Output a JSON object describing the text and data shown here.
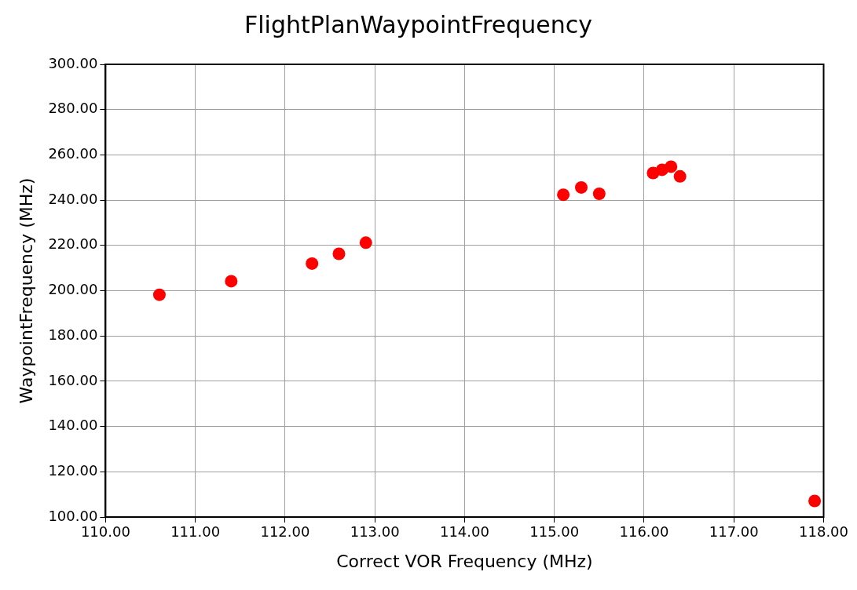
{
  "chart_data": {
    "type": "scatter",
    "title": "FlightPlanWaypointFrequency",
    "xlabel": "Correct VOR Frequency (MHz)",
    "ylabel": "WaypointFrequency (MHz)",
    "x": [
      110.6,
      111.4,
      112.3,
      112.6,
      112.9,
      115.1,
      115.3,
      115.5,
      116.1,
      116.2,
      116.3,
      116.4,
      117.9
    ],
    "series": [
      {
        "color": "#ff0000",
        "values": [
          198.2,
          204.2,
          212,
          216.3,
          221.2,
          242.4,
          245.6,
          242.8,
          252,
          253.4,
          254.8,
          250.5,
          107.1
        ]
      }
    ],
    "xlim": [
      110,
      118
    ],
    "ylim": [
      100,
      300
    ],
    "xticks": [
      {
        "value": 110,
        "label": "110.00"
      },
      {
        "value": 111,
        "label": "111.00"
      },
      {
        "value": 112,
        "label": "112.00"
      },
      {
        "value": 113,
        "label": "113.00"
      },
      {
        "value": 114,
        "label": "114.00"
      },
      {
        "value": 115,
        "label": "115.00"
      },
      {
        "value": 116,
        "label": "116.00"
      },
      {
        "value": 117,
        "label": "117.00"
      },
      {
        "value": 118,
        "label": "118.00"
      }
    ],
    "yticks": [
      {
        "value": 100,
        "label": "100.00"
      },
      {
        "value": 120,
        "label": "120.00"
      },
      {
        "value": 140,
        "label": "140.00"
      },
      {
        "value": 160,
        "label": "160.00"
      },
      {
        "value": 180,
        "label": "180.00"
      },
      {
        "value": 200,
        "label": "200.00"
      },
      {
        "value": 220,
        "label": "220.00"
      },
      {
        "value": 240,
        "label": "240.00"
      },
      {
        "value": 260,
        "label": "260.00"
      },
      {
        "value": 280,
        "label": "280.00"
      },
      {
        "value": 300,
        "label": "300.00"
      }
    ],
    "grid": true,
    "legend": false,
    "marker": "circle"
  }
}
